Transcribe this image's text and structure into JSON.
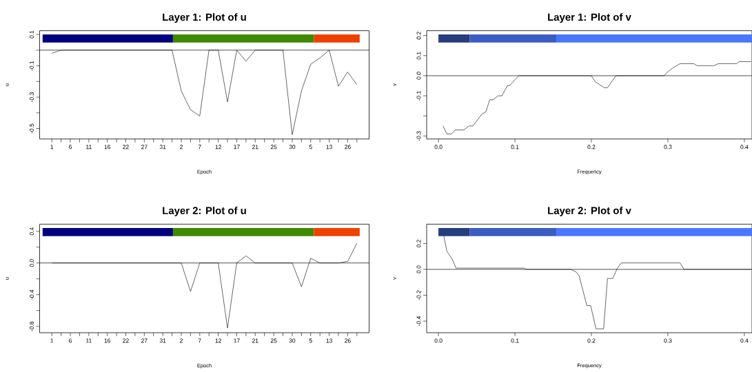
{
  "chart_data": [
    {
      "type": "line",
      "title": "Layer 1: Plot of u",
      "xlabel": "Epoch",
      "ylabel": "u",
      "color": "#000000",
      "categories": [
        "1",
        null,
        "6",
        null,
        "11",
        null,
        "16",
        null,
        "22",
        null,
        "27",
        null,
        "31",
        null,
        "2",
        null,
        "7",
        null,
        "12",
        null,
        "17",
        null,
        "21",
        null,
        "25",
        null,
        "30",
        null,
        "5",
        null,
        "13",
        null,
        "26",
        null
      ],
      "values": [
        -0.02,
        0,
        0,
        0,
        0,
        0,
        0,
        0,
        0,
        0,
        0,
        0,
        0,
        0,
        -0.26,
        -0.38,
        -0.42,
        0,
        0,
        -0.33,
        0,
        -0.07,
        0,
        0,
        0,
        0,
        -0.54,
        -0.26,
        -0.09,
        -0.05,
        0,
        -0.23,
        -0.14,
        -0.22
      ],
      "ylim": [
        -0.567,
        0.124
      ],
      "yticks": [
        -0.5,
        {
          "value": -0.4,
          "label": null
        },
        -0.3,
        {
          "value": -0.2,
          "label": null
        },
        -0.1,
        {
          "value": 0,
          "label": null
        },
        0.1
      ],
      "ref_lines": [
        {
          "axis": "y",
          "value": 0
        }
      ]
    },
    {
      "type": "line",
      "title": "Layer 1: Plot of v",
      "xlabel": "Frequency",
      "ylabel": "v",
      "color": "#000000",
      "x": [
        0.006,
        0.011,
        0.017,
        0.022,
        0.033,
        0.04,
        0.045,
        0.051,
        0.057,
        0.062,
        0.067,
        0.071,
        0.078,
        0.083,
        0.09,
        0.093,
        0.1,
        0.105,
        0.2,
        0.205,
        0.217,
        0.221,
        0.232,
        0.295,
        0.3,
        0.307,
        0.316,
        0.334,
        0.338,
        0.36,
        0.366,
        0.39,
        0.393,
        0.401,
        0.405,
        0.409
      ],
      "values": [
        -0.25,
        -0.29,
        -0.29,
        -0.27,
        -0.27,
        -0.25,
        -0.25,
        -0.22,
        -0.19,
        -0.18,
        -0.12,
        -0.12,
        -0.1,
        -0.1,
        -0.05,
        -0.05,
        -0.02,
        0,
        0,
        -0.03,
        -0.06,
        -0.06,
        0,
        0,
        0.02,
        0.04,
        0.06,
        0.06,
        0.05,
        0.05,
        0.06,
        0.06,
        0.07,
        0.07,
        0.07,
        0.07
      ],
      "xlim": [
        -0.0154,
        0.41
      ],
      "xticks": [
        {
          "value": 0,
          "label": "0.0"
        },
        0.1,
        0.2,
        0.3,
        0.4
      ],
      "ylim": [
        -0.315,
        0.224
      ],
      "yticks": [
        -0.3,
        {
          "value": -0.2,
          "label": null
        },
        -0.1,
        {
          "value": 0,
          "label": "0.0"
        },
        0.1,
        0.2
      ],
      "ref_lines": [
        {
          "axis": "y",
          "value": 0
        }
      ],
      "bands": [
        {
          "axis": "x",
          "from": 0,
          "to": 0.041,
          "color": "#263d80"
        },
        {
          "axis": "x",
          "from": 0.041,
          "to": 0.154,
          "color": "#3b5cc4"
        },
        {
          "axis": "x",
          "from": 0.154,
          "to": 0.41,
          "color": "#4a77ff"
        }
      ]
    },
    {
      "type": "line",
      "title": "Layer 2: Plot of u",
      "xlabel": "Epoch",
      "ylabel": "u",
      "color": "#000000",
      "categories": [
        "1",
        null,
        "6",
        null,
        "11",
        null,
        "16",
        null,
        "22",
        null,
        "27",
        null,
        "31",
        null,
        "2",
        null,
        "7",
        null,
        "12",
        null,
        "17",
        null,
        "21",
        null,
        "25",
        null,
        "30",
        null,
        "5",
        null,
        "13",
        null,
        "26",
        null
      ],
      "values": [
        0,
        0,
        0,
        0,
        0,
        0,
        0,
        0,
        0,
        0,
        0,
        0,
        0,
        0,
        0,
        -0.36,
        0,
        0,
        0,
        -0.82,
        0,
        0.09,
        0,
        0,
        0,
        0,
        0,
        -0.3,
        0.06,
        0,
        0,
        0,
        0.02,
        0.25
      ],
      "ylim": [
        -0.88,
        0.49
      ],
      "yticks": [
        -0.8,
        {
          "value": -0.6,
          "label": null
        },
        -0.4,
        {
          "value": -0.2,
          "label": null
        },
        {
          "value": 0,
          "label": "0.0"
        },
        {
          "value": 0.2,
          "label": null
        },
        0.4
      ],
      "ref_lines": [
        {
          "axis": "y",
          "value": 0
        }
      ]
    },
    {
      "type": "line",
      "title": "Layer 2: Plot of v",
      "xlabel": "Frequency",
      "ylabel": "v",
      "color": "#000000",
      "x": [
        0.007,
        0.011,
        0.018,
        0.023,
        0.112,
        0.115,
        0.173,
        0.18,
        0.184,
        0.194,
        0.199,
        0.206,
        0.216,
        0.221,
        0.228,
        0.234,
        0.239,
        0.316,
        0.321,
        0.409
      ],
      "values": [
        0.26,
        0.14,
        0.08,
        0.01,
        0.01,
        0,
        0,
        -0.02,
        -0.05,
        -0.28,
        -0.28,
        -0.46,
        -0.46,
        -0.07,
        -0.07,
        0.01,
        0.05,
        0.05,
        0,
        0
      ],
      "xlim": [
        -0.0154,
        0.41
      ],
      "xticks": [
        {
          "value": 0,
          "label": "0.0"
        },
        0.1,
        0.2,
        0.3,
        0.4
      ],
      "ylim": [
        -0.49,
        0.35
      ],
      "yticks": [
        -0.4,
        -0.2,
        {
          "value": 0,
          "label": "0.0"
        },
        0.2
      ],
      "ref_lines": [
        {
          "axis": "y",
          "value": 0
        }
      ],
      "bands": [
        {
          "axis": "x",
          "from": 0,
          "to": 0.041,
          "color": "#263d80"
        },
        {
          "axis": "x",
          "from": 0.041,
          "to": 0.154,
          "color": "#3b5cc4"
        },
        {
          "axis": "x",
          "from": 0.154,
          "to": 0.41,
          "color": "#4a77ff"
        }
      ]
    }
  ]
}
